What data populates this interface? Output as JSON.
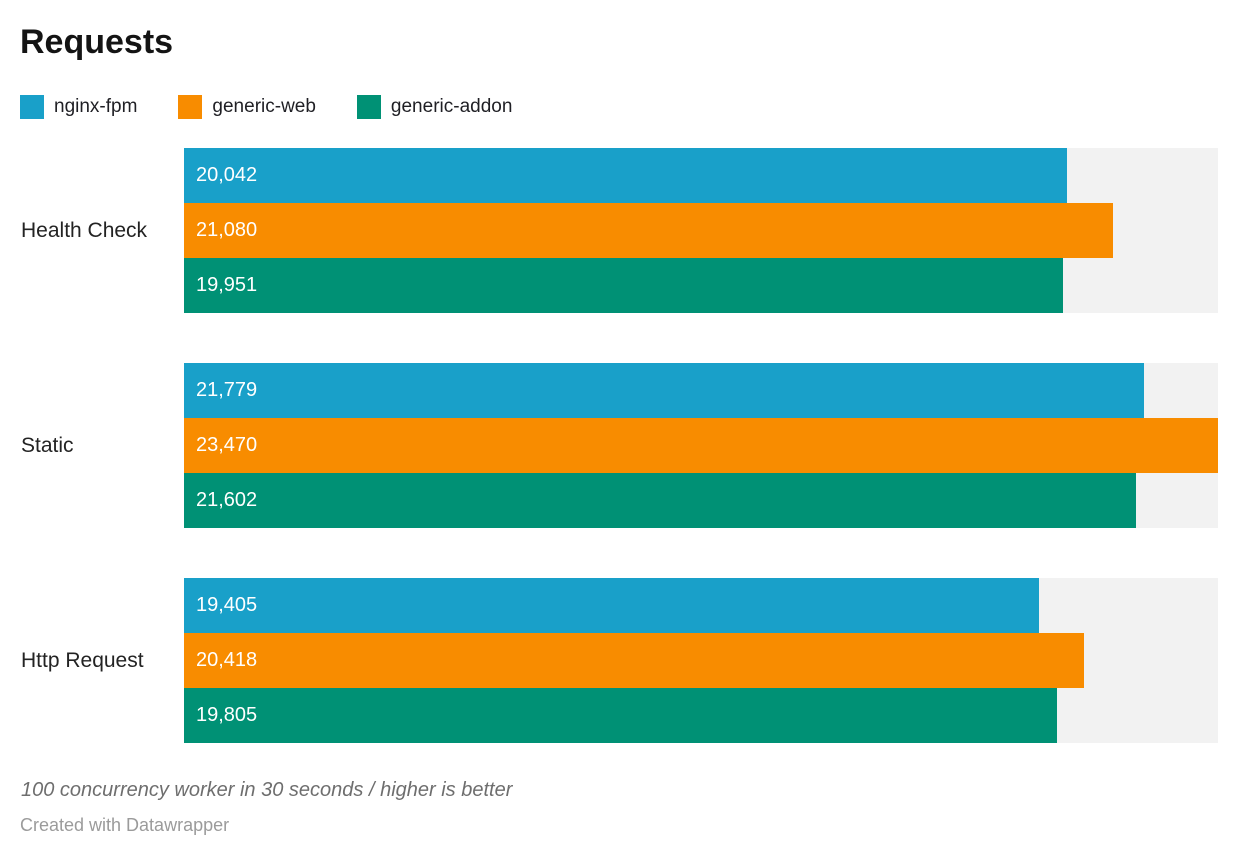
{
  "title": "Requests",
  "legend": [
    {
      "label": "nginx-fpm",
      "color": "#19a0c9"
    },
    {
      "label": "generic-web",
      "color": "#f88c00"
    },
    {
      "label": "generic-addon",
      "color": "#009175"
    }
  ],
  "chart_data": {
    "type": "bar",
    "orientation": "horizontal",
    "title": "Requests",
    "categories": [
      "Health Check",
      "Static",
      "Http Request"
    ],
    "series": [
      {
        "name": "nginx-fpm",
        "color": "#19a0c9",
        "values": [
          20042,
          21779,
          19405
        ]
      },
      {
        "name": "generic-web",
        "color": "#f88c00",
        "values": [
          21080,
          23470,
          20418
        ]
      },
      {
        "name": "generic-addon",
        "color": "#009175",
        "values": [
          19951,
          21602,
          19805
        ]
      }
    ],
    "xlim": [
      0,
      23470
    ],
    "value_label_format": "thousands-comma",
    "value_label_color": "#ffffff",
    "track_color": "#f2f2f2",
    "grid": false,
    "legend_position": "top-left"
  },
  "footer": {
    "note": "100 concurrency worker in 30 seconds / higher is better",
    "attribution": "Created with Datawrapper"
  }
}
